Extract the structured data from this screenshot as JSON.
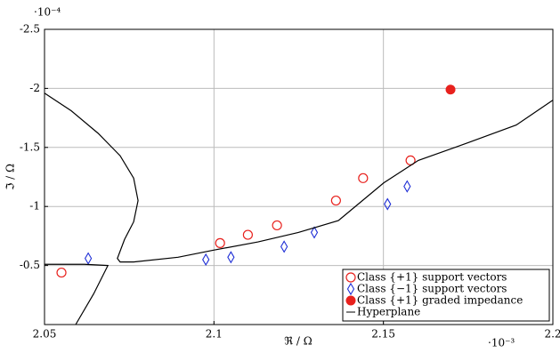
{
  "chart_data": {
    "type": "scatter",
    "x_exponent_label": "·10⁻³",
    "y_exponent_label": "·10⁻⁴",
    "x_label": "ℜ / Ω",
    "y_label": "ℑ / Ω",
    "xlim": [
      2.05,
      2.2
    ],
    "xticks": [
      2.05,
      2.1,
      2.15,
      2.2
    ],
    "ylim": [
      0,
      -2.5
    ],
    "yticks": [
      -2.5,
      -2,
      -1.5,
      -1,
      -0.5
    ],
    "grid": true,
    "legend": "lower right",
    "series": [
      {
        "name": "Class {+1} support vectors",
        "color": "#e8211d",
        "marker": "circle-open",
        "x": [
          2.055,
          2.1018,
          2.11,
          2.1186,
          2.136,
          2.144,
          2.158
        ],
        "values": [
          -0.44,
          -0.69,
          -0.76,
          -0.84,
          -1.05,
          -1.24,
          -1.39
        ]
      },
      {
        "name": "Class {−1} support vectors",
        "color": "#1f2fd6",
        "marker": "diamond-open",
        "x": [
          2.0629,
          2.0976,
          2.105,
          2.1207,
          2.1296,
          2.1512,
          2.157
        ],
        "values": [
          -0.56,
          -0.55,
          -0.57,
          -0.66,
          -0.78,
          -1.02,
          -1.17
        ]
      },
      {
        "name": "Class {+1} graded impedance",
        "color": "#e8211d",
        "marker": "circle-filled",
        "x": [
          2.1698
        ],
        "values": [
          -1.99
        ]
      },
      {
        "name": "Hyperplane",
        "color": "#000000",
        "marker": "line",
        "x": [
          2.05,
          2.0579,
          2.0658,
          2.0723,
          2.0763,
          2.0776,
          2.0763,
          2.0736,
          2.0715,
          2.0723,
          2.0763,
          2.0894,
          2.0999,
          2.113,
          2.1249,
          2.1367,
          2.1501,
          2.1603,
          2.175,
          2.1892,
          2.2,
          null,
          2.05,
          2.0618,
          2.0687,
          2.0645,
          2.0592
        ],
        "values": [
          -1.96,
          -1.81,
          -1.62,
          -1.43,
          -1.24,
          -1.05,
          -0.87,
          -0.72,
          -0.56,
          -0.53,
          -0.53,
          -0.57,
          -0.63,
          -0.7,
          -0.78,
          -0.88,
          -1.2,
          -1.39,
          -1.54,
          -1.69,
          -1.9,
          null,
          -0.51,
          -0.51,
          -0.5,
          -0.26,
          0
        ]
      }
    ]
  }
}
